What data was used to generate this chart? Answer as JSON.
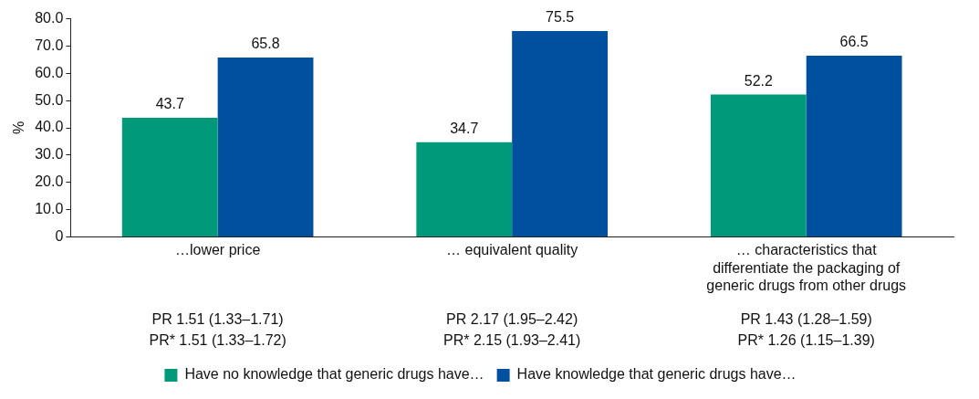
{
  "chart_data": {
    "type": "bar",
    "ylabel": "%",
    "categories": [
      "…lower price",
      "… equivalent quality",
      "… characteristics that differentiate the packaging of generic drugs from other drugs"
    ],
    "series": [
      {
        "name": "Have no knowledge that generic drugs have…",
        "color": "#009a7a",
        "values": [
          43.7,
          34.7,
          52.2
        ]
      },
      {
        "name": "Have knowledge that generic drugs have…",
        "color": "#0050a0",
        "values": [
          65.8,
          75.5,
          66.5
        ]
      }
    ],
    "ylim": [
      0,
      80
    ],
    "yticks": [
      {
        "value": 0,
        "label": "0"
      },
      {
        "value": 10,
        "label": "10.0"
      },
      {
        "value": 20,
        "label": "20.0"
      },
      {
        "value": 30,
        "label": "30.0"
      },
      {
        "value": 40,
        "label": "40.0"
      },
      {
        "value": 50,
        "label": "50.0"
      },
      {
        "value": 60,
        "label": "60.0"
      },
      {
        "value": 70,
        "label": "70.0"
      },
      {
        "value": 80,
        "label": "80.0"
      }
    ],
    "data_labels": true,
    "grid": false,
    "legend": "bottom",
    "annotations": [
      "PR 1.51 (1.33–1.71)",
      "PR 2.17 (1.95–2.42)",
      "PR 1.43 (1.28–1.59)",
      "PR* 1.51 (1.33–1.72)",
      "PR* 2.15 (1.93–2.41)",
      "PR* 1.26 (1.15–1.39)"
    ]
  }
}
